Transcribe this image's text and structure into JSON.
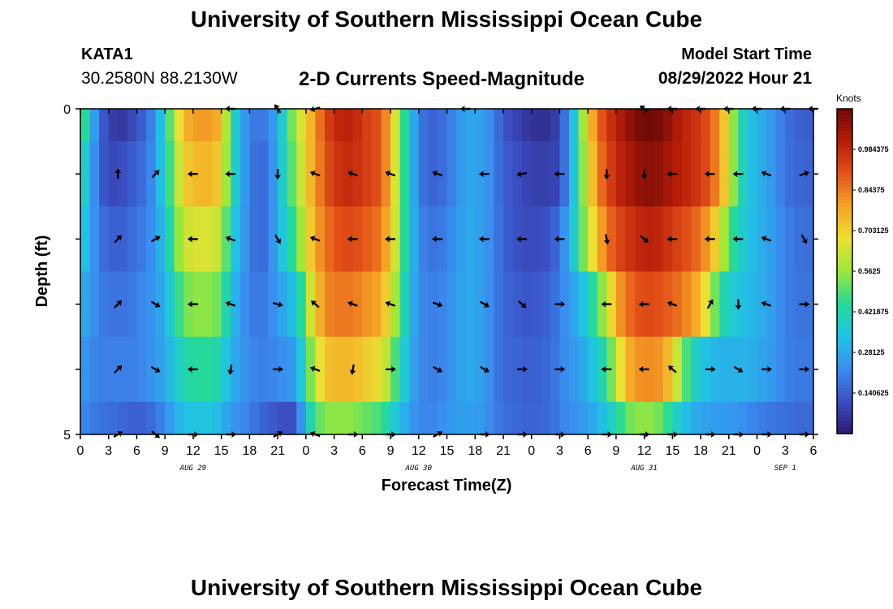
{
  "page": {
    "title": "University of Southern Mississippi Ocean Cube",
    "title_repeat": "University of Southern Mississippi Ocean Cube",
    "station": "KATA1",
    "coordinates": "30.2580N  88.2130W",
    "subtitle": "2-D Currents Speed-Magnitude",
    "model_start_label": "Model Start Time",
    "model_start_value": "08/29/2022 Hour 21"
  },
  "colors": {
    "stops": [
      "#2b1a6e",
      "#3b4fc4",
      "#3a8ef0",
      "#20c4e4",
      "#25d99a",
      "#9ae83a",
      "#ece032",
      "#f5a426",
      "#e4541a",
      "#b41c08",
      "#6e0a06"
    ],
    "arrow": "#000000",
    "axis": "#000000"
  },
  "chart_data": {
    "type": "heatmap",
    "title": "2-D Currents Speed-Magnitude",
    "xlabel": "Forecast Time(Z)",
    "ylabel": "Depth (ft)",
    "colorbar_label": "Knots",
    "colorbar_range": [
      0,
      1.125
    ],
    "colorbar_ticks": [
      "0.140625",
      "0.28125",
      "0.421875",
      "0.5625",
      "0.703125",
      "0.84375",
      "0.984375"
    ],
    "x_range_hours": [
      0,
      78
    ],
    "x_tick_labels": [
      "0",
      "3",
      "6",
      "9",
      "12",
      "15",
      "18",
      "21",
      "0",
      "3",
      "6",
      "9",
      "12",
      "15",
      "18",
      "21",
      "0",
      "3",
      "6",
      "9",
      "12",
      "15",
      "18",
      "21",
      "0",
      "3",
      "6"
    ],
    "day_labels": [
      {
        "label": "AUG 29",
        "hour": 12
      },
      {
        "label": "AUG 30",
        "hour": 36
      },
      {
        "label": "AUG 31",
        "hour": 60
      },
      {
        "label": "SEP 1",
        "hour": 75
      }
    ],
    "y_tick_labels": [
      "0",
      "",
      "",
      "",
      "",
      "5"
    ],
    "depth_levels_ft": [
      0,
      1,
      2,
      3,
      4,
      5
    ],
    "speed_keyframes": {
      "hours": [
        0,
        1,
        2,
        3,
        4,
        5,
        6,
        7,
        8,
        9,
        10,
        11,
        12,
        14,
        15,
        16,
        17,
        18,
        19,
        20,
        21,
        22,
        23,
        24,
        25,
        26,
        27,
        28,
        29,
        30,
        32,
        33,
        34,
        35,
        36,
        37,
        38,
        39,
        40,
        41,
        42,
        43,
        44,
        45,
        46,
        48,
        50,
        51,
        52,
        53,
        54,
        55,
        56,
        57,
        58,
        59,
        60,
        61,
        62,
        63,
        64,
        65,
        66,
        67,
        68,
        69,
        70,
        71,
        72,
        73,
        74,
        75,
        76,
        77,
        78
      ],
      "rows": [
        [
          0.55,
          0.35,
          0.15,
          0.1,
          0.05,
          0.08,
          0.12,
          0.15,
          0.25,
          0.4,
          0.6,
          0.75,
          0.8,
          0.8,
          0.75,
          0.45,
          0.3,
          0.2,
          0.18,
          0.2,
          0.3,
          0.45,
          0.6,
          0.7,
          0.8,
          0.92,
          0.98,
          1.0,
          1.0,
          0.95,
          0.9,
          0.75,
          0.55,
          0.35,
          0.2,
          0.15,
          0.15,
          0.18,
          0.22,
          0.27,
          0.28,
          0.25,
          0.2,
          0.12,
          0.1,
          0.05,
          0.05,
          0.1,
          0.25,
          0.45,
          0.7,
          0.85,
          0.95,
          1.0,
          1.05,
          1.1,
          1.12,
          1.12,
          1.1,
          1.05,
          1.0,
          0.98,
          0.95,
          0.9,
          0.8,
          0.65,
          0.45,
          0.35,
          0.3,
          0.28,
          0.22,
          0.18,
          0.15,
          0.14,
          0.14
        ],
        [
          0.45,
          0.3,
          0.15,
          0.1,
          0.1,
          0.12,
          0.15,
          0.18,
          0.25,
          0.4,
          0.55,
          0.7,
          0.75,
          0.75,
          0.7,
          0.45,
          0.3,
          0.2,
          0.15,
          0.18,
          0.3,
          0.45,
          0.55,
          0.7,
          0.8,
          0.9,
          0.95,
          0.98,
          0.98,
          0.95,
          0.9,
          0.75,
          0.55,
          0.35,
          0.2,
          0.15,
          0.15,
          0.18,
          0.22,
          0.27,
          0.28,
          0.25,
          0.2,
          0.14,
          0.12,
          0.08,
          0.08,
          0.1,
          0.25,
          0.45,
          0.65,
          0.82,
          0.92,
          0.98,
          1.02,
          1.05,
          1.08,
          1.08,
          1.06,
          1.02,
          1.0,
          0.98,
          0.95,
          0.9,
          0.8,
          0.65,
          0.45,
          0.35,
          0.3,
          0.28,
          0.22,
          0.18,
          0.16,
          0.15,
          0.15
        ],
        [
          0.38,
          0.28,
          0.18,
          0.15,
          0.14,
          0.15,
          0.18,
          0.2,
          0.25,
          0.35,
          0.5,
          0.62,
          0.65,
          0.65,
          0.6,
          0.4,
          0.28,
          0.2,
          0.15,
          0.18,
          0.3,
          0.4,
          0.5,
          0.65,
          0.78,
          0.85,
          0.9,
          0.92,
          0.92,
          0.9,
          0.85,
          0.72,
          0.55,
          0.35,
          0.22,
          0.18,
          0.18,
          0.2,
          0.24,
          0.28,
          0.28,
          0.25,
          0.2,
          0.15,
          0.12,
          0.1,
          0.12,
          0.18,
          0.3,
          0.45,
          0.6,
          0.75,
          0.85,
          0.92,
          0.95,
          0.98,
          1.0,
          1.0,
          0.98,
          0.95,
          0.92,
          0.9,
          0.85,
          0.78,
          0.65,
          0.5,
          0.4,
          0.35,
          0.3,
          0.28,
          0.24,
          0.2,
          0.18,
          0.17,
          0.17
        ],
        [
          0.3,
          0.25,
          0.2,
          0.18,
          0.18,
          0.18,
          0.2,
          0.22,
          0.25,
          0.3,
          0.42,
          0.52,
          0.55,
          0.55,
          0.5,
          0.35,
          0.25,
          0.2,
          0.18,
          0.2,
          0.25,
          0.3,
          0.35,
          0.55,
          0.72,
          0.82,
          0.85,
          0.85,
          0.85,
          0.82,
          0.78,
          0.65,
          0.5,
          0.32,
          0.22,
          0.2,
          0.2,
          0.22,
          0.25,
          0.28,
          0.28,
          0.25,
          0.2,
          0.16,
          0.14,
          0.12,
          0.15,
          0.2,
          0.25,
          0.3,
          0.38,
          0.5,
          0.6,
          0.78,
          0.85,
          0.9,
          0.92,
          0.92,
          0.9,
          0.88,
          0.85,
          0.8,
          0.75,
          0.6,
          0.45,
          0.38,
          0.34,
          0.32,
          0.3,
          0.28,
          0.24,
          0.2,
          0.18,
          0.18,
          0.18
        ],
        [
          0.25,
          0.22,
          0.2,
          0.2,
          0.2,
          0.2,
          0.2,
          0.22,
          0.25,
          0.28,
          0.35,
          0.42,
          0.45,
          0.45,
          0.4,
          0.3,
          0.25,
          0.22,
          0.2,
          0.2,
          0.22,
          0.24,
          0.26,
          0.45,
          0.62,
          0.72,
          0.75,
          0.75,
          0.75,
          0.72,
          0.68,
          0.55,
          0.42,
          0.3,
          0.22,
          0.2,
          0.2,
          0.22,
          0.25,
          0.28,
          0.28,
          0.25,
          0.2,
          0.16,
          0.15,
          0.14,
          0.16,
          0.2,
          0.24,
          0.26,
          0.3,
          0.38,
          0.45,
          0.6,
          0.75,
          0.8,
          0.82,
          0.82,
          0.8,
          0.7,
          0.55,
          0.42,
          0.35,
          0.32,
          0.3,
          0.3,
          0.3,
          0.3,
          0.28,
          0.26,
          0.24,
          0.2,
          0.19,
          0.19,
          0.19
        ],
        [
          0.22,
          0.2,
          0.18,
          0.17,
          0.16,
          0.15,
          0.14,
          0.15,
          0.18,
          0.22,
          0.28,
          0.33,
          0.35,
          0.35,
          0.3,
          0.25,
          0.22,
          0.2,
          0.16,
          0.14,
          0.12,
          0.1,
          0.12,
          0.35,
          0.48,
          0.55,
          0.55,
          0.55,
          0.55,
          0.52,
          0.48,
          0.4,
          0.32,
          0.26,
          0.22,
          0.2,
          0.22,
          0.24,
          0.26,
          0.26,
          0.26,
          0.24,
          0.2,
          0.17,
          0.16,
          0.15,
          0.16,
          0.2,
          0.22,
          0.24,
          0.26,
          0.3,
          0.35,
          0.42,
          0.5,
          0.55,
          0.55,
          0.55,
          0.5,
          0.42,
          0.35,
          0.3,
          0.27,
          0.26,
          0.25,
          0.25,
          0.24,
          0.22,
          0.2,
          0.19,
          0.18,
          0.17,
          0.16,
          0.16,
          0.16
        ]
      ]
    },
    "vectors": [
      {
        "depth": 0,
        "hours": [
          16,
          21,
          25,
          41,
          60,
          63,
          66,
          69,
          72,
          75,
          78
        ],
        "angles": [
          180,
          235,
          165,
          180,
          215,
          180,
          180,
          180,
          180,
          180,
          180
        ]
      },
      {
        "depth": 1,
        "hours": [
          4,
          8,
          12,
          16,
          21,
          25,
          29,
          33,
          38,
          43,
          47,
          51,
          56,
          60,
          63,
          67,
          70,
          73,
          77
        ],
        "angles": [
          270,
          315,
          180,
          180,
          90,
          200,
          200,
          200,
          200,
          180,
          170,
          180,
          90,
          90,
          180,
          180,
          180,
          200,
          340
        ]
      },
      {
        "depth": 2,
        "hours": [
          4,
          8,
          12,
          16,
          21,
          25,
          29,
          33,
          38,
          43,
          47,
          51,
          56,
          60,
          63,
          67,
          70,
          73,
          77
        ],
        "angles": [
          315,
          330,
          180,
          200,
          60,
          200,
          180,
          180,
          180,
          180,
          180,
          180,
          80,
          40,
          180,
          180,
          180,
          200,
          60
        ]
      },
      {
        "depth": 3,
        "hours": [
          4,
          8,
          12,
          16,
          21,
          25,
          29,
          33,
          38,
          43,
          47,
          51,
          56,
          60,
          63,
          67,
          70,
          73,
          77
        ],
        "angles": [
          315,
          30,
          180,
          200,
          15,
          220,
          200,
          200,
          20,
          30,
          40,
          0,
          180,
          180,
          200,
          300,
          90,
          200,
          0
        ]
      },
      {
        "depth": 4,
        "hours": [
          4,
          8,
          12,
          16,
          21,
          25,
          29,
          33,
          38,
          43,
          47,
          51,
          56,
          60,
          63,
          67,
          70,
          73,
          77
        ],
        "angles": [
          315,
          30,
          180,
          100,
          0,
          200,
          100,
          0,
          30,
          30,
          0,
          0,
          180,
          180,
          220,
          0,
          30,
          0,
          0
        ]
      },
      {
        "depth": 5,
        "hours": [
          4,
          8,
          12,
          16,
          21,
          25,
          29,
          33,
          38,
          43,
          47,
          51,
          56,
          60,
          63,
          67,
          70,
          73,
          77
        ],
        "angles": [
          330,
          40,
          0,
          0,
          330,
          200,
          0,
          0,
          330,
          0,
          0,
          0,
          0,
          0,
          0,
          0,
          0,
          0,
          0
        ]
      }
    ]
  }
}
